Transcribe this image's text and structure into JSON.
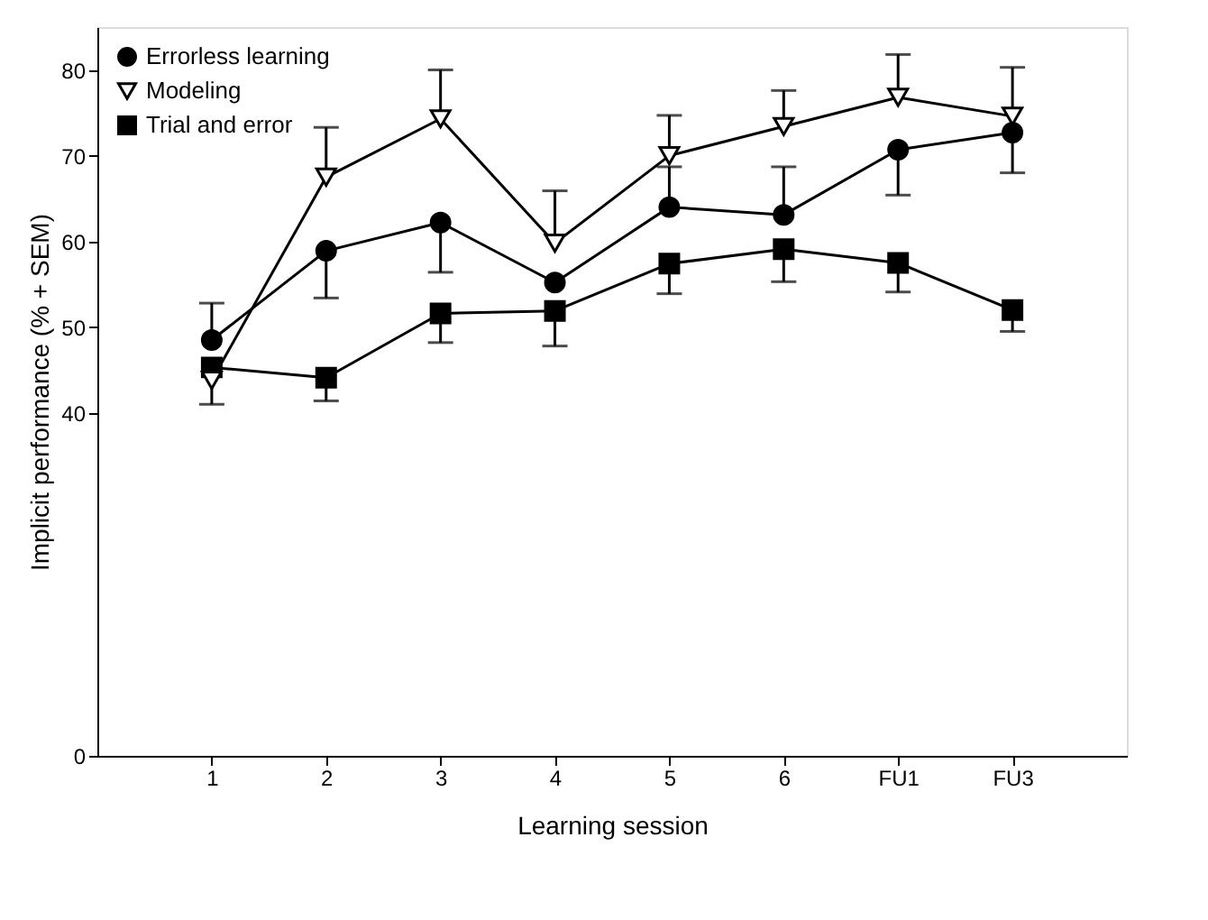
{
  "chart_data": {
    "type": "line",
    "xlabel": "Learning session",
    "ylabel": "Implicit performance (% + SEM)",
    "categories": [
      "1",
      "2",
      "3",
      "4",
      "5",
      "6",
      "FU1",
      "FU3"
    ],
    "ylim": [
      0,
      85
    ],
    "yticks": [
      0,
      40,
      50,
      60,
      70,
      80
    ],
    "grid": false,
    "legend": "top left",
    "series": [
      {
        "name": "Errorless learning",
        "color": "#000000",
        "marker": "circle",
        "values": [
          48.5,
          58.9,
          62.2,
          55.2,
          64.0,
          63.1,
          70.7,
          72.7
        ],
        "errors": [
          [
            48.5,
            52.8
          ],
          [
            53.4,
            58.9
          ],
          [
            56.4,
            62.2
          ],
          null,
          [
            64.0,
            68.7
          ],
          [
            63.1,
            68.7
          ],
          [
            65.4,
            70.7
          ],
          [
            68.0,
            72.7
          ]
        ]
      },
      {
        "name": "Modeling",
        "color": "#000000",
        "marker": "triangle",
        "values": [
          43.8,
          67.5,
          74.3,
          59.8,
          70.0,
          73.4,
          76.8,
          74.6
        ],
        "errors": [
          [
            41.0,
            43.8
          ],
          [
            67.5,
            73.3
          ],
          [
            74.3,
            80.0
          ],
          [
            59.8,
            65.9
          ],
          [
            70.0,
            74.7
          ],
          [
            73.4,
            77.6
          ],
          [
            76.8,
            81.8
          ],
          [
            74.6,
            80.3
          ]
        ]
      },
      {
        "name": "Trial and error",
        "color": "#000000",
        "marker": "square",
        "values": [
          45.3,
          44.1,
          51.6,
          51.9,
          57.4,
          59.1,
          57.5,
          52.0
        ],
        "errors": [
          null,
          [
            41.4,
            44.1
          ],
          [
            48.2,
            51.6
          ],
          [
            47.8,
            51.9
          ],
          [
            53.9,
            57.4
          ],
          [
            55.3,
            59.1
          ],
          [
            54.1,
            57.5
          ],
          [
            49.5,
            52.0
          ]
        ]
      }
    ]
  }
}
